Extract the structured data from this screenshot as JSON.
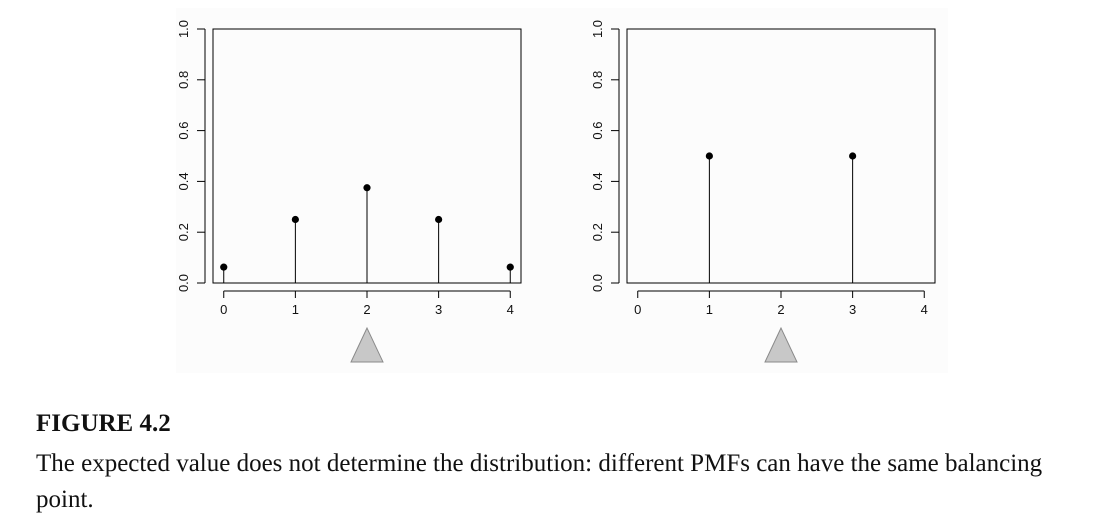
{
  "chart_data": [
    {
      "type": "stem",
      "x": [
        0,
        1,
        2,
        3,
        4
      ],
      "y": [
        0.0625,
        0.25,
        0.375,
        0.25,
        0.0625
      ],
      "xlim": [
        -0.15,
        4.15
      ],
      "ylim": [
        0,
        1
      ],
      "xticks": [
        "0",
        "1",
        "2",
        "3",
        "4"
      ],
      "yticks": [
        "0.0",
        "0.2",
        "0.4",
        "0.6",
        "0.8",
        "1.0"
      ],
      "balance_point": 2,
      "grid": false
    },
    {
      "type": "stem",
      "x": [
        1,
        3
      ],
      "y": [
        0.5,
        0.5
      ],
      "xlim": [
        -0.15,
        4.15
      ],
      "ylim": [
        0,
        1
      ],
      "xticks": [
        "0",
        "1",
        "2",
        "3",
        "4"
      ],
      "yticks": [
        "0.0",
        "0.2",
        "0.4",
        "0.6",
        "0.8",
        "1.0"
      ],
      "balance_point": 2,
      "grid": false
    }
  ],
  "caption": {
    "title": "FIGURE 4.2",
    "text": "The expected value does not determine the distribution: different PMFs can have the same balancing point."
  },
  "colors": {
    "points": "#000000",
    "fulcrum_fill": "#c8c8c8",
    "fulcrum_stroke": "#8a8a8a",
    "panel_bg": "#fcfcfc"
  }
}
